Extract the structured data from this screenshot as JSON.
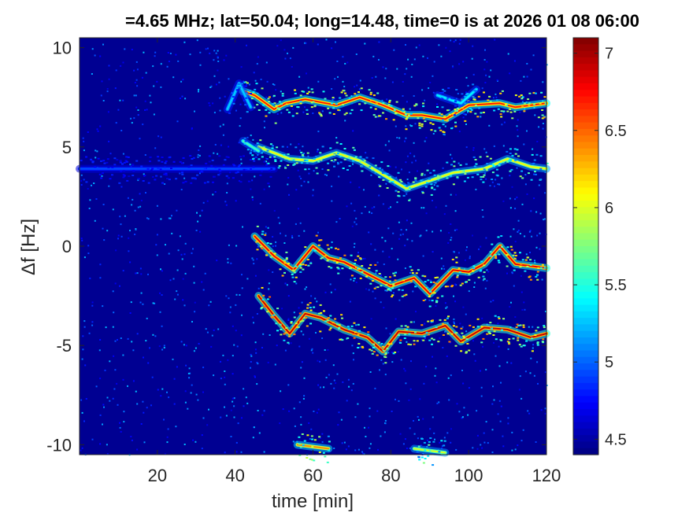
{
  "chart_data": {
    "type": "heatmap",
    "title": "=4.65 MHz;  lat=50.04; long=14.48, time=0 is at 2026 01 08 06:00",
    "xlabel": "time [min]",
    "ylabel": "Δf [Hz]",
    "xlim": [
      0,
      120
    ],
    "ylim": [
      -10.5,
      10.5
    ],
    "xticks": [
      "20",
      "40",
      "60",
      "80",
      "100",
      "120"
    ],
    "xtick_values": [
      20,
      40,
      60,
      80,
      100,
      120
    ],
    "yticks": [
      "10",
      "5",
      "0",
      "-5",
      "-10"
    ],
    "ytick_values": [
      10,
      5,
      0,
      -5,
      -10
    ],
    "colorbar": {
      "colormap": "jet",
      "clim": [
        4.4,
        7.1
      ],
      "ticks": [
        "7",
        "6.5",
        "6",
        "5.5",
        "5",
        "4.5"
      ],
      "tick_values": [
        7,
        6.5,
        6,
        5.5,
        5,
        4.5
      ]
    },
    "background_level": 4.45,
    "traces": [
      {
        "points": [
          [
            42,
            7.8
          ],
          [
            45,
            7.6
          ],
          [
            50,
            6.9
          ],
          [
            53,
            7.2
          ],
          [
            58,
            7.4
          ],
          [
            66,
            7.1
          ],
          [
            72,
            7.5
          ],
          [
            78,
            7.1
          ],
          [
            84,
            6.6
          ],
          [
            88,
            6.6
          ],
          [
            94,
            6.4
          ],
          [
            100,
            7.1
          ],
          [
            108,
            7.2
          ],
          [
            112,
            7.0
          ],
          [
            120,
            7.2
          ]
        ],
        "level": 6.7
      },
      {
        "points": [
          [
            46,
            5.0
          ],
          [
            50,
            4.7
          ],
          [
            54,
            4.4
          ],
          [
            60,
            4.3
          ],
          [
            66,
            4.7
          ],
          [
            72,
            4.3
          ],
          [
            78,
            3.6
          ],
          [
            84,
            2.9
          ],
          [
            90,
            3.3
          ],
          [
            96,
            3.7
          ],
          [
            104,
            3.9
          ],
          [
            110,
            4.4
          ],
          [
            116,
            4.0
          ],
          [
            120,
            3.9
          ]
        ],
        "level": 6.1
      },
      {
        "points": [
          [
            45,
            0.5
          ],
          [
            50,
            -0.5
          ],
          [
            55,
            -1.2
          ],
          [
            60,
            0.0
          ],
          [
            64,
            -0.6
          ],
          [
            68,
            -0.8
          ],
          [
            74,
            -1.4
          ],
          [
            80,
            -2.0
          ],
          [
            86,
            -1.6
          ],
          [
            90,
            -2.4
          ],
          [
            96,
            -1.2
          ],
          [
            100,
            -1.3
          ],
          [
            104,
            -0.9
          ],
          [
            108,
            0.0
          ],
          [
            112,
            -0.9
          ],
          [
            120,
            -1.1
          ]
        ],
        "level": 6.8
      },
      {
        "points": [
          [
            46,
            -2.5
          ],
          [
            50,
            -3.5
          ],
          [
            54,
            -4.4
          ],
          [
            58,
            -3.4
          ],
          [
            62,
            -3.6
          ],
          [
            68,
            -4.2
          ],
          [
            74,
            -4.6
          ],
          [
            78,
            -5.3
          ],
          [
            82,
            -4.3
          ],
          [
            88,
            -4.4
          ],
          [
            94,
            -4.0
          ],
          [
            98,
            -4.8
          ],
          [
            104,
            -4.1
          ],
          [
            110,
            -4.2
          ],
          [
            116,
            -4.6
          ],
          [
            120,
            -4.4
          ]
        ],
        "level": 6.9
      },
      {
        "points": [
          [
            38,
            6.9
          ],
          [
            41,
            8.2
          ],
          [
            44,
            7.0
          ]
        ],
        "level": 5.3
      },
      {
        "points": [
          [
            42,
            5.3
          ],
          [
            46,
            4.8
          ]
        ],
        "level": 5.6
      },
      {
        "points": [
          [
            56,
            -10.0
          ],
          [
            64,
            -10.2
          ]
        ],
        "level": 6.4
      },
      {
        "points": [
          [
            86,
            -10.2
          ],
          [
            94,
            -10.4
          ]
        ],
        "level": 6.0
      },
      {
        "points": [
          [
            92,
            7.6
          ],
          [
            98,
            7.2
          ],
          [
            102,
            7.9
          ]
        ],
        "level": 5.4
      },
      {
        "points": [
          [
            0,
            3.9
          ],
          [
            50,
            3.9
          ]
        ],
        "level": 4.95
      }
    ]
  }
}
